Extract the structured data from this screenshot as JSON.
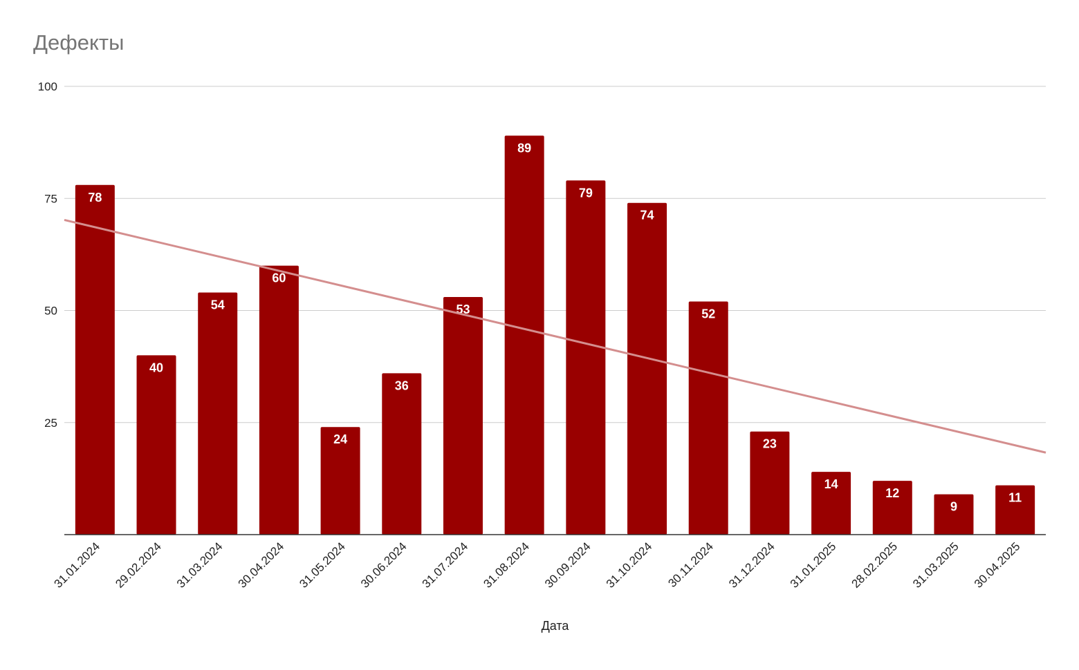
{
  "chart_data": {
    "type": "bar",
    "title": "Дефекты",
    "xlabel": "Дата",
    "ylabel": "",
    "ylim": [
      0,
      100
    ],
    "yticks": [
      25,
      50,
      75,
      100
    ],
    "categories": [
      "31.01.2024",
      "29.02.2024",
      "31.03.2024",
      "30.04.2024",
      "31.05.2024",
      "30.06.2024",
      "31.07.2024",
      "31.08.2024",
      "30.09.2024",
      "31.10.2024",
      "30.11.2024",
      "31.12.2024",
      "31.01.2025",
      "28.02.2025",
      "31.03.2025",
      "30.04.2025"
    ],
    "values": [
      78,
      40,
      54,
      60,
      24,
      36,
      53,
      89,
      79,
      74,
      52,
      23,
      14,
      12,
      9,
      11
    ],
    "data_labels": true,
    "trendline": {
      "type": "linear",
      "start": 70.2,
      "end": 18.3
    },
    "grid": true,
    "legend": "none",
    "colors": {
      "bar": "#990000",
      "trendline": "#d48e8e",
      "title": "#757575"
    }
  }
}
